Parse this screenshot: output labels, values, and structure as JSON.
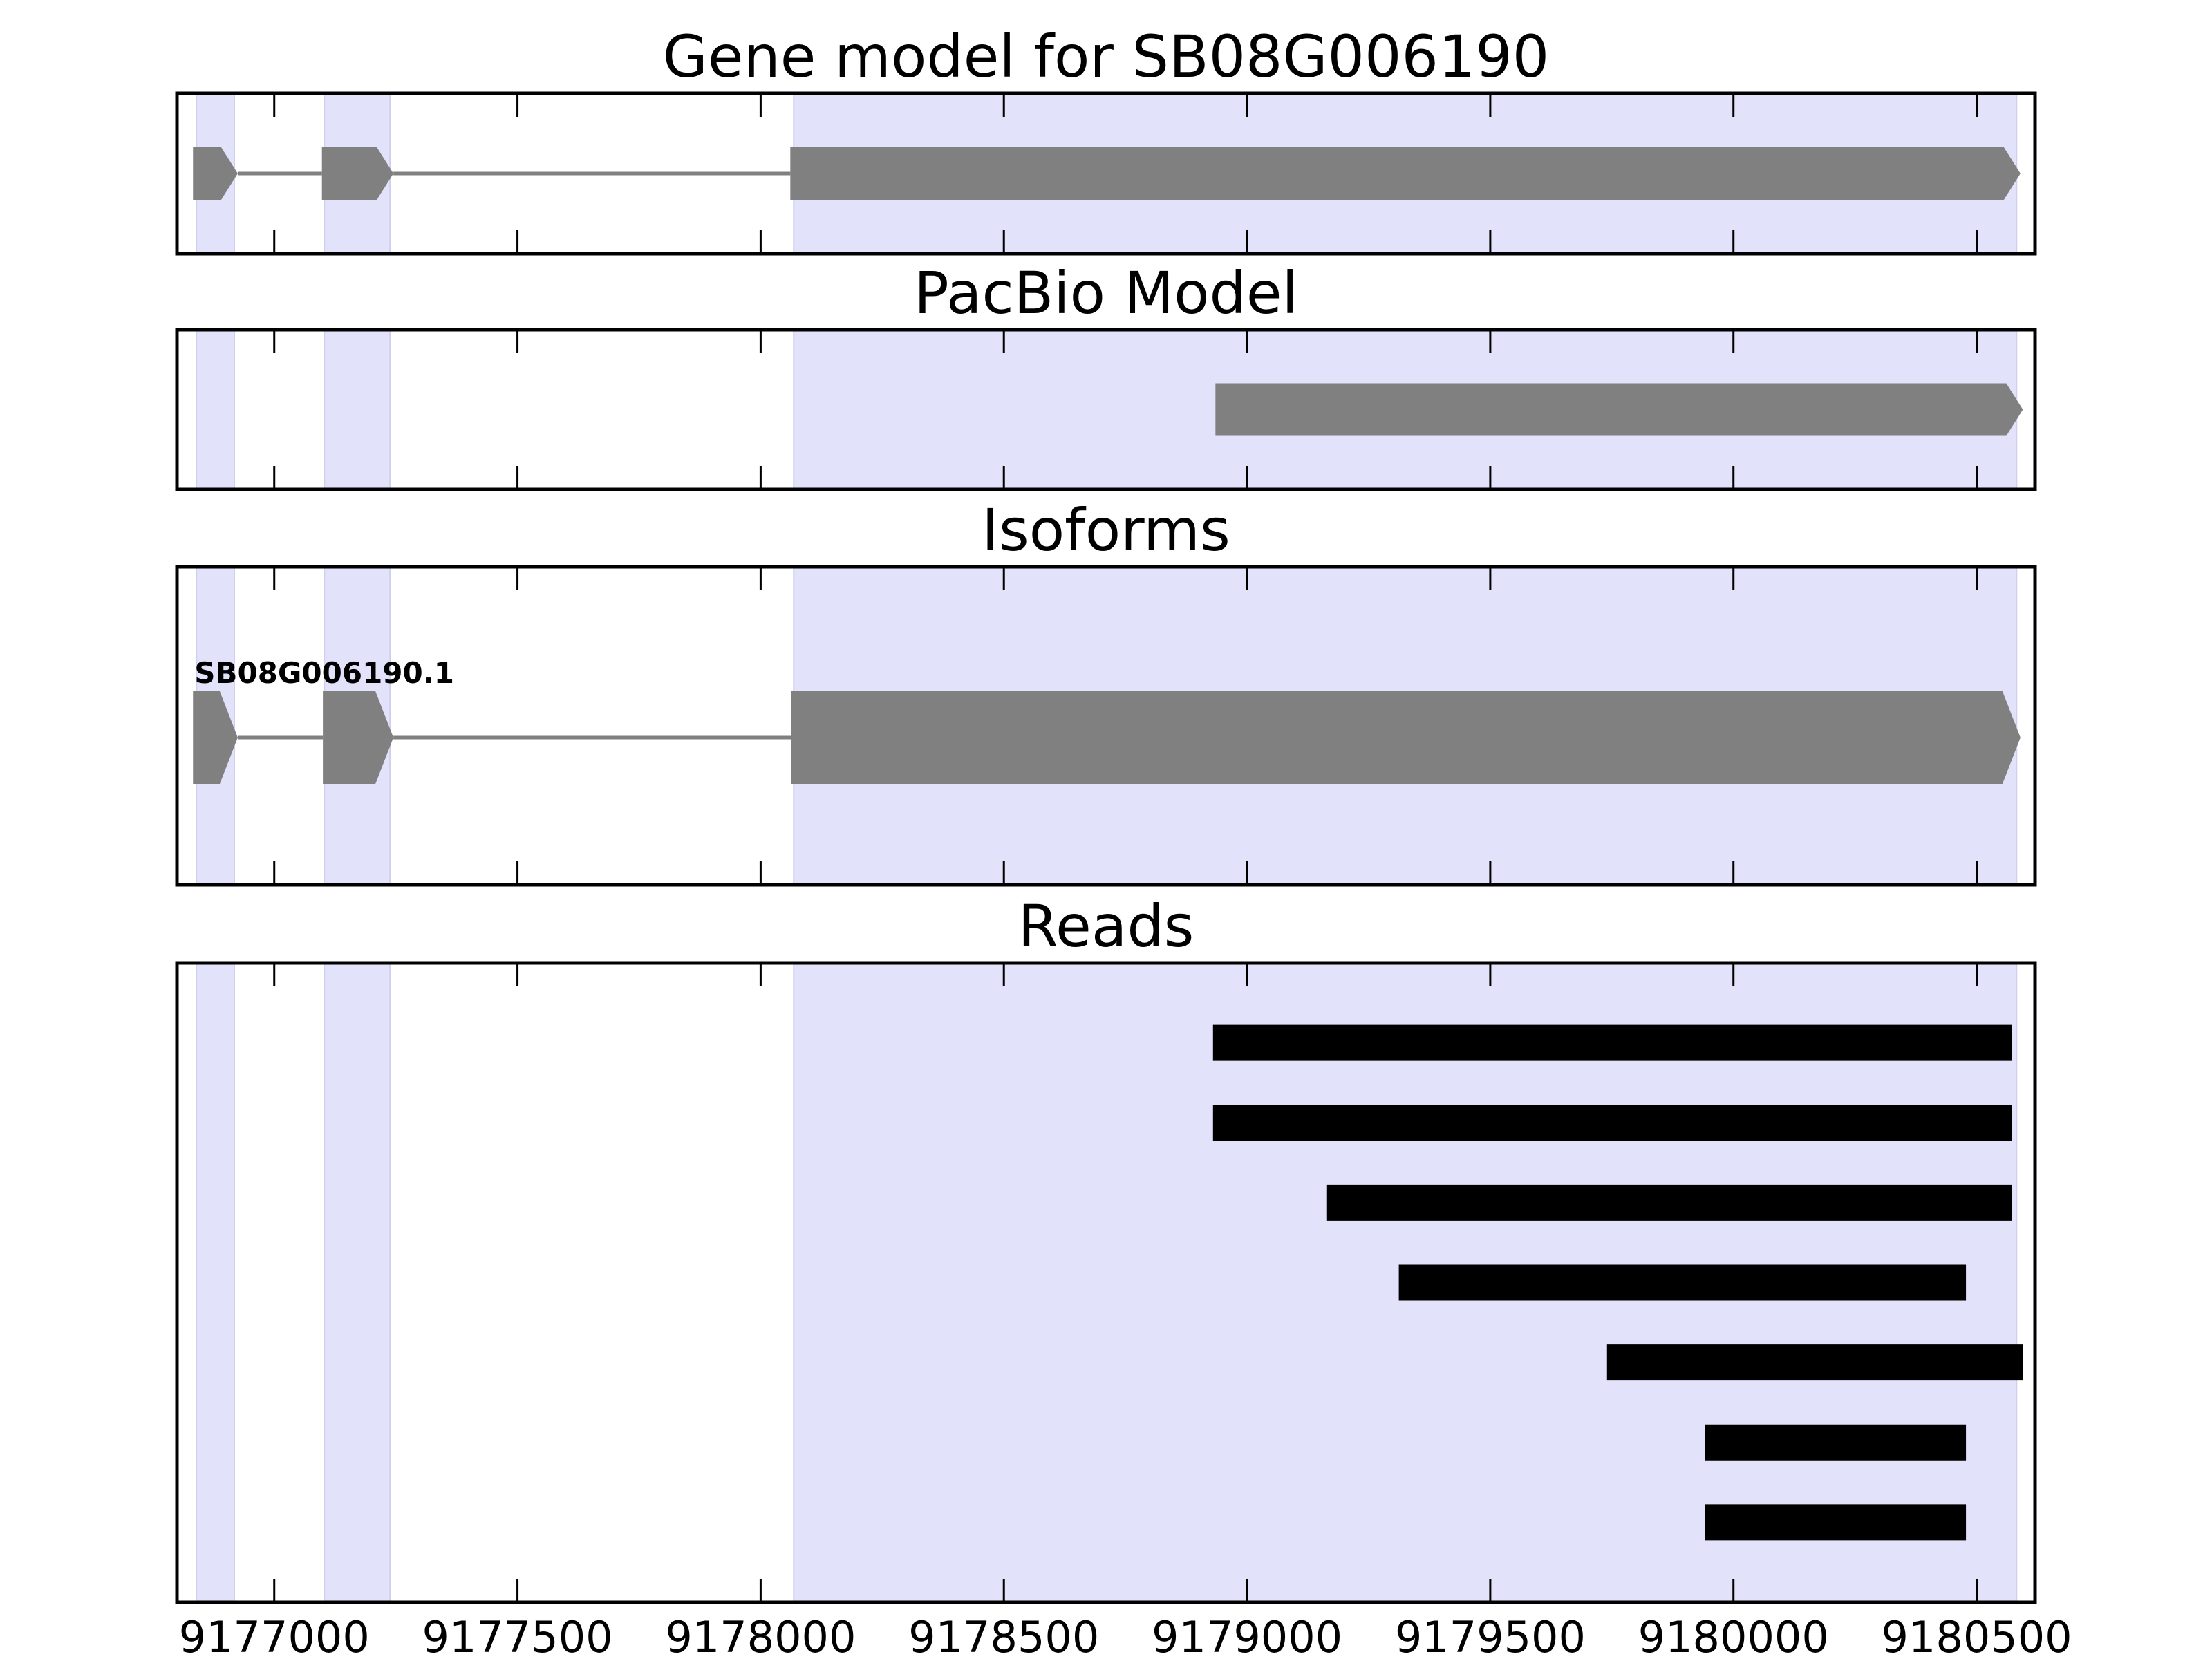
{
  "chart_data": {
    "type": "gene-track",
    "xlim": [
      9176800,
      9180620
    ],
    "x_ticks": [
      9177000,
      9177500,
      9178000,
      9178500,
      9179000,
      9179500,
      9180000,
      9180500
    ],
    "x_tick_labels": [
      "9177000",
      "9177500",
      "9178000",
      "9178500",
      "9179000",
      "9179500",
      "9180000",
      "9180500"
    ],
    "strand": "+",
    "colors": {
      "feature": "#808080",
      "intron": "#808080",
      "read": "#000000",
      "exon_highlight": "#e2e2fb",
      "axes": "#000000",
      "background": "#ffffff"
    },
    "exon_highlights": [
      [
        9176840,
        9176918
      ],
      [
        9177103,
        9177238
      ],
      [
        9178068,
        9180582
      ]
    ],
    "panels": [
      {
        "title": "Gene model for SB08G006190",
        "kind": "gene_model",
        "features": [
          {
            "label": "",
            "exons": [
              [
                9176833,
                9176925
              ],
              [
                9177098,
                9177245
              ],
              [
                9178061,
                9180590
              ]
            ]
          }
        ]
      },
      {
        "title": "PacBio Model",
        "kind": "gene_model",
        "features": [
          {
            "label": "",
            "exons": [
              [
                9178935,
                9180595
              ]
            ]
          }
        ]
      },
      {
        "title": "Isoforms",
        "kind": "isoforms",
        "features": [
          {
            "label": "SB08G006190.1",
            "exons": [
              [
                9176833,
                9176925
              ],
              [
                9177100,
                9177245
              ],
              [
                9178063,
                9180590
              ]
            ]
          }
        ]
      },
      {
        "title": "Reads",
        "kind": "reads",
        "features": [
          {
            "label": "",
            "exons": [
              [
                9178930,
                9180572
              ]
            ]
          },
          {
            "label": "",
            "exons": [
              [
                9178930,
                9180572
              ]
            ]
          },
          {
            "label": "",
            "exons": [
              [
                9179163,
                9180572
              ]
            ]
          },
          {
            "label": "",
            "exons": [
              [
                9179312,
                9180478
              ]
            ]
          },
          {
            "label": "",
            "exons": [
              [
                9179740,
                9180595
              ]
            ]
          },
          {
            "label": "",
            "exons": [
              [
                9179942,
                9180478
              ]
            ]
          },
          {
            "label": "",
            "exons": [
              [
                9179942,
                9180478
              ]
            ]
          }
        ]
      }
    ]
  }
}
